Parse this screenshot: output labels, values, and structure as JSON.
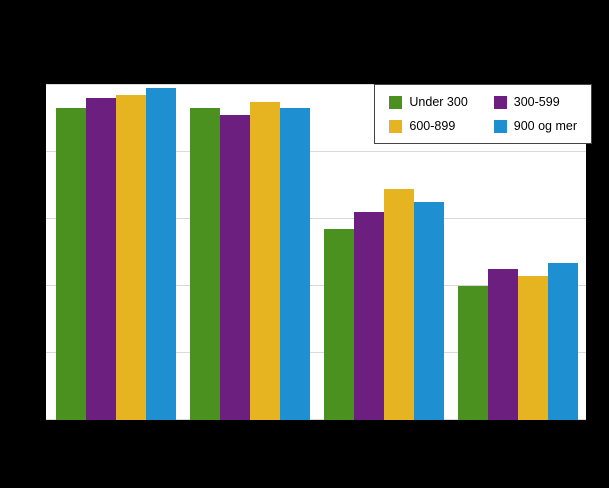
{
  "chart_data": {
    "type": "bar",
    "title": "",
    "categories": [
      "",
      "",
      "",
      ""
    ],
    "series": [
      {
        "name": "Under 300",
        "color": "#4a9120",
        "values": [
          93,
          93,
          57,
          40
        ]
      },
      {
        "name": "300-599",
        "color": "#6c1f7e",
        "values": [
          96,
          91,
          62,
          45
        ]
      },
      {
        "name": "600-899",
        "color": "#e6b321",
        "values": [
          97,
          95,
          69,
          43
        ]
      },
      {
        "name": "900 og mer",
        "color": "#1e8fd0",
        "values": [
          99,
          93,
          65,
          47
        ]
      }
    ],
    "ylim": [
      0,
      100
    ],
    "gridline_step": 20,
    "grid": true,
    "legend_position": "top-right",
    "colors": {
      "page_background": "#000000",
      "plot_background": "#ffffff",
      "gridline": "#d9d9d9"
    }
  }
}
